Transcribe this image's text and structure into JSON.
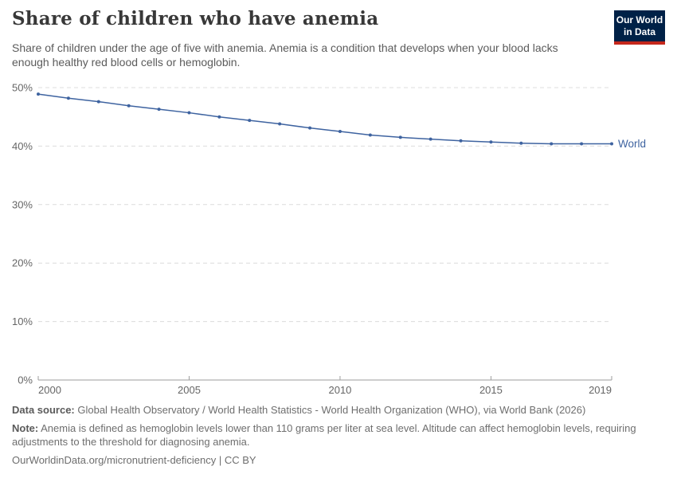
{
  "header": {
    "title": "Share of children who have anemia",
    "subtitle": "Share of children under the age of five with anemia. Anemia is a condition that develops when your blood lacks enough healthy red blood cells or hemoglobin.",
    "logo": {
      "line1": "Our World",
      "line2": "in Data"
    }
  },
  "chart_data": {
    "type": "line",
    "title": "Share of children who have anemia",
    "x": [
      2000,
      2001,
      2002,
      2003,
      2004,
      2005,
      2006,
      2007,
      2008,
      2009,
      2010,
      2011,
      2012,
      2013,
      2014,
      2015,
      2016,
      2017,
      2018,
      2019
    ],
    "series": [
      {
        "name": "World",
        "color": "#3E63A0",
        "values": [
          48.9,
          48.2,
          47.6,
          46.9,
          46.3,
          45.7,
          45.0,
          44.4,
          43.8,
          43.1,
          42.5,
          41.9,
          41.5,
          41.2,
          40.9,
          40.7,
          40.5,
          40.4,
          40.4,
          40.4
        ]
      }
    ],
    "xlim": [
      2000,
      2019
    ],
    "ylim": [
      0,
      50
    ],
    "unit": "%",
    "x_ticks": [
      {
        "value": 2000,
        "label": "2000"
      },
      {
        "value": 2005,
        "label": "2005"
      },
      {
        "value": 2010,
        "label": "2010"
      },
      {
        "value": 2015,
        "label": "2015"
      },
      {
        "value": 2019,
        "label": "2019"
      }
    ],
    "y_ticks": [
      {
        "value": 0,
        "label": "0%"
      },
      {
        "value": 10,
        "label": "10%"
      },
      {
        "value": 20,
        "label": "20%"
      },
      {
        "value": 30,
        "label": "30%"
      },
      {
        "value": 40,
        "label": "40%"
      },
      {
        "value": 50,
        "label": "50%"
      }
    ],
    "grid": "horizontal-dashed",
    "legend": "end-of-line-label"
  },
  "colors": {
    "line": "#3E63A0",
    "grid": "#dcdcdc",
    "axis": "#9e9e9e",
    "logo_bg": "#002147",
    "logo_stripe": "#C5281C",
    "title_text": "#383838",
    "subtitle_text": "#5b5b5b",
    "tick_text": "#666666",
    "footer_text": "#6e6e6e"
  },
  "footer": {
    "data_source_label": "Data source:",
    "data_source_text": " Global Health Observatory / World Health Statistics - World Health Organization (WHO), via World Bank (2026)",
    "note_label": "Note:",
    "note_text": " Anemia is defined as hemoglobin levels lower than 110 grams per liter at sea level. Altitude can affect hemoglobin levels, requiring adjustments to the threshold for diagnosing anemia.",
    "citation": "OurWorldinData.org/micronutrient-deficiency | CC BY"
  }
}
